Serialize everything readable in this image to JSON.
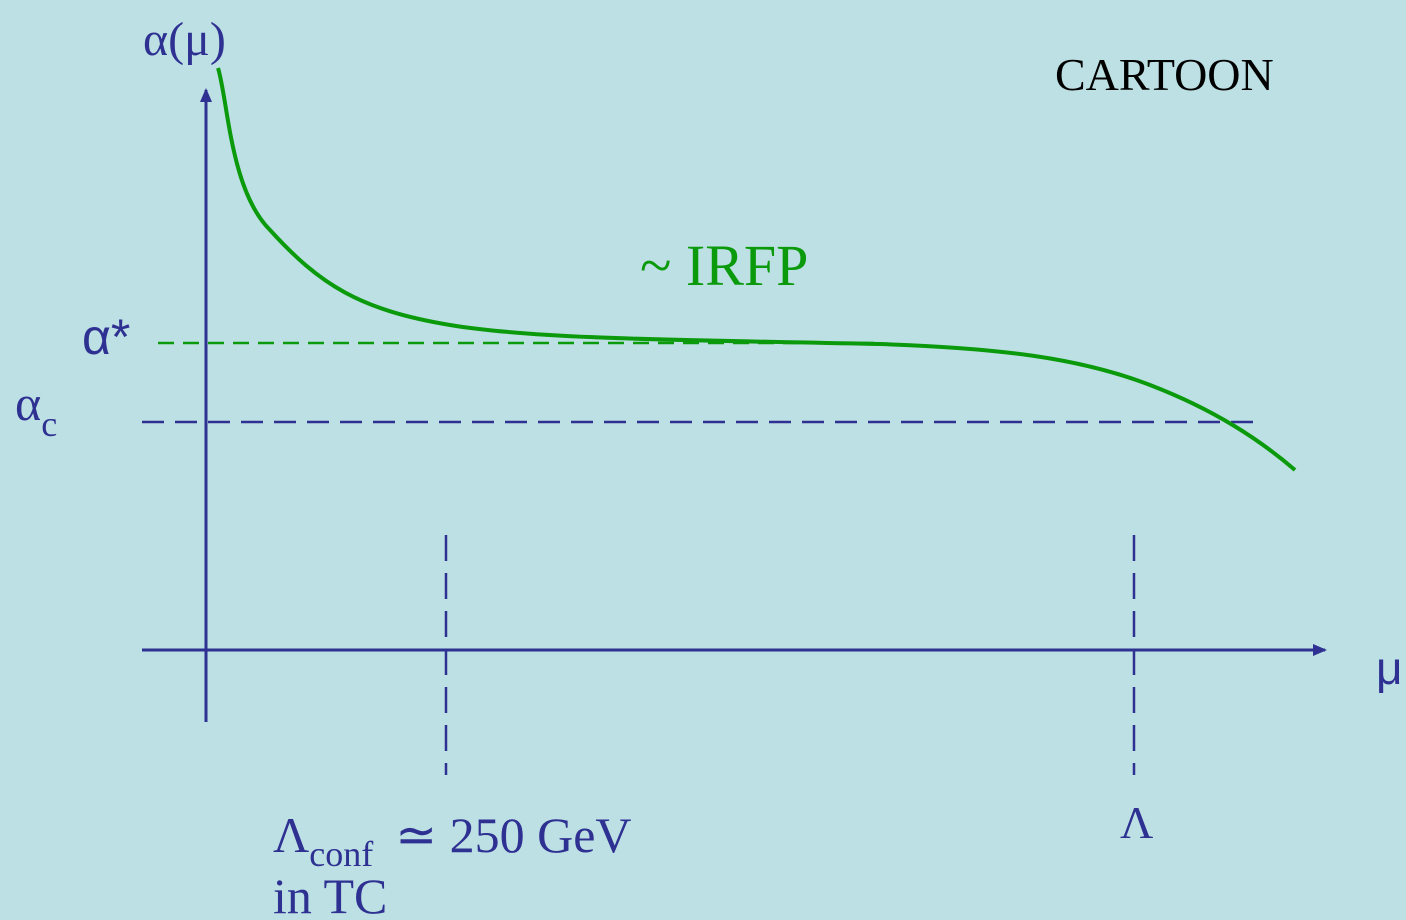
{
  "axes": {
    "y_label": "α(μ)",
    "x_label": "μ"
  },
  "note": "CARTOON",
  "curve_label": "~ IRFP",
  "levels": {
    "alpha_star": "α*",
    "alpha_c": {
      "symbol": "α",
      "subscript": "c"
    }
  },
  "scales": {
    "lambda_conf": {
      "symbol": "Λ",
      "subscript": "conf",
      "value": "≃ 250 GeV",
      "context": "in TC"
    },
    "lambda": "Λ"
  }
}
